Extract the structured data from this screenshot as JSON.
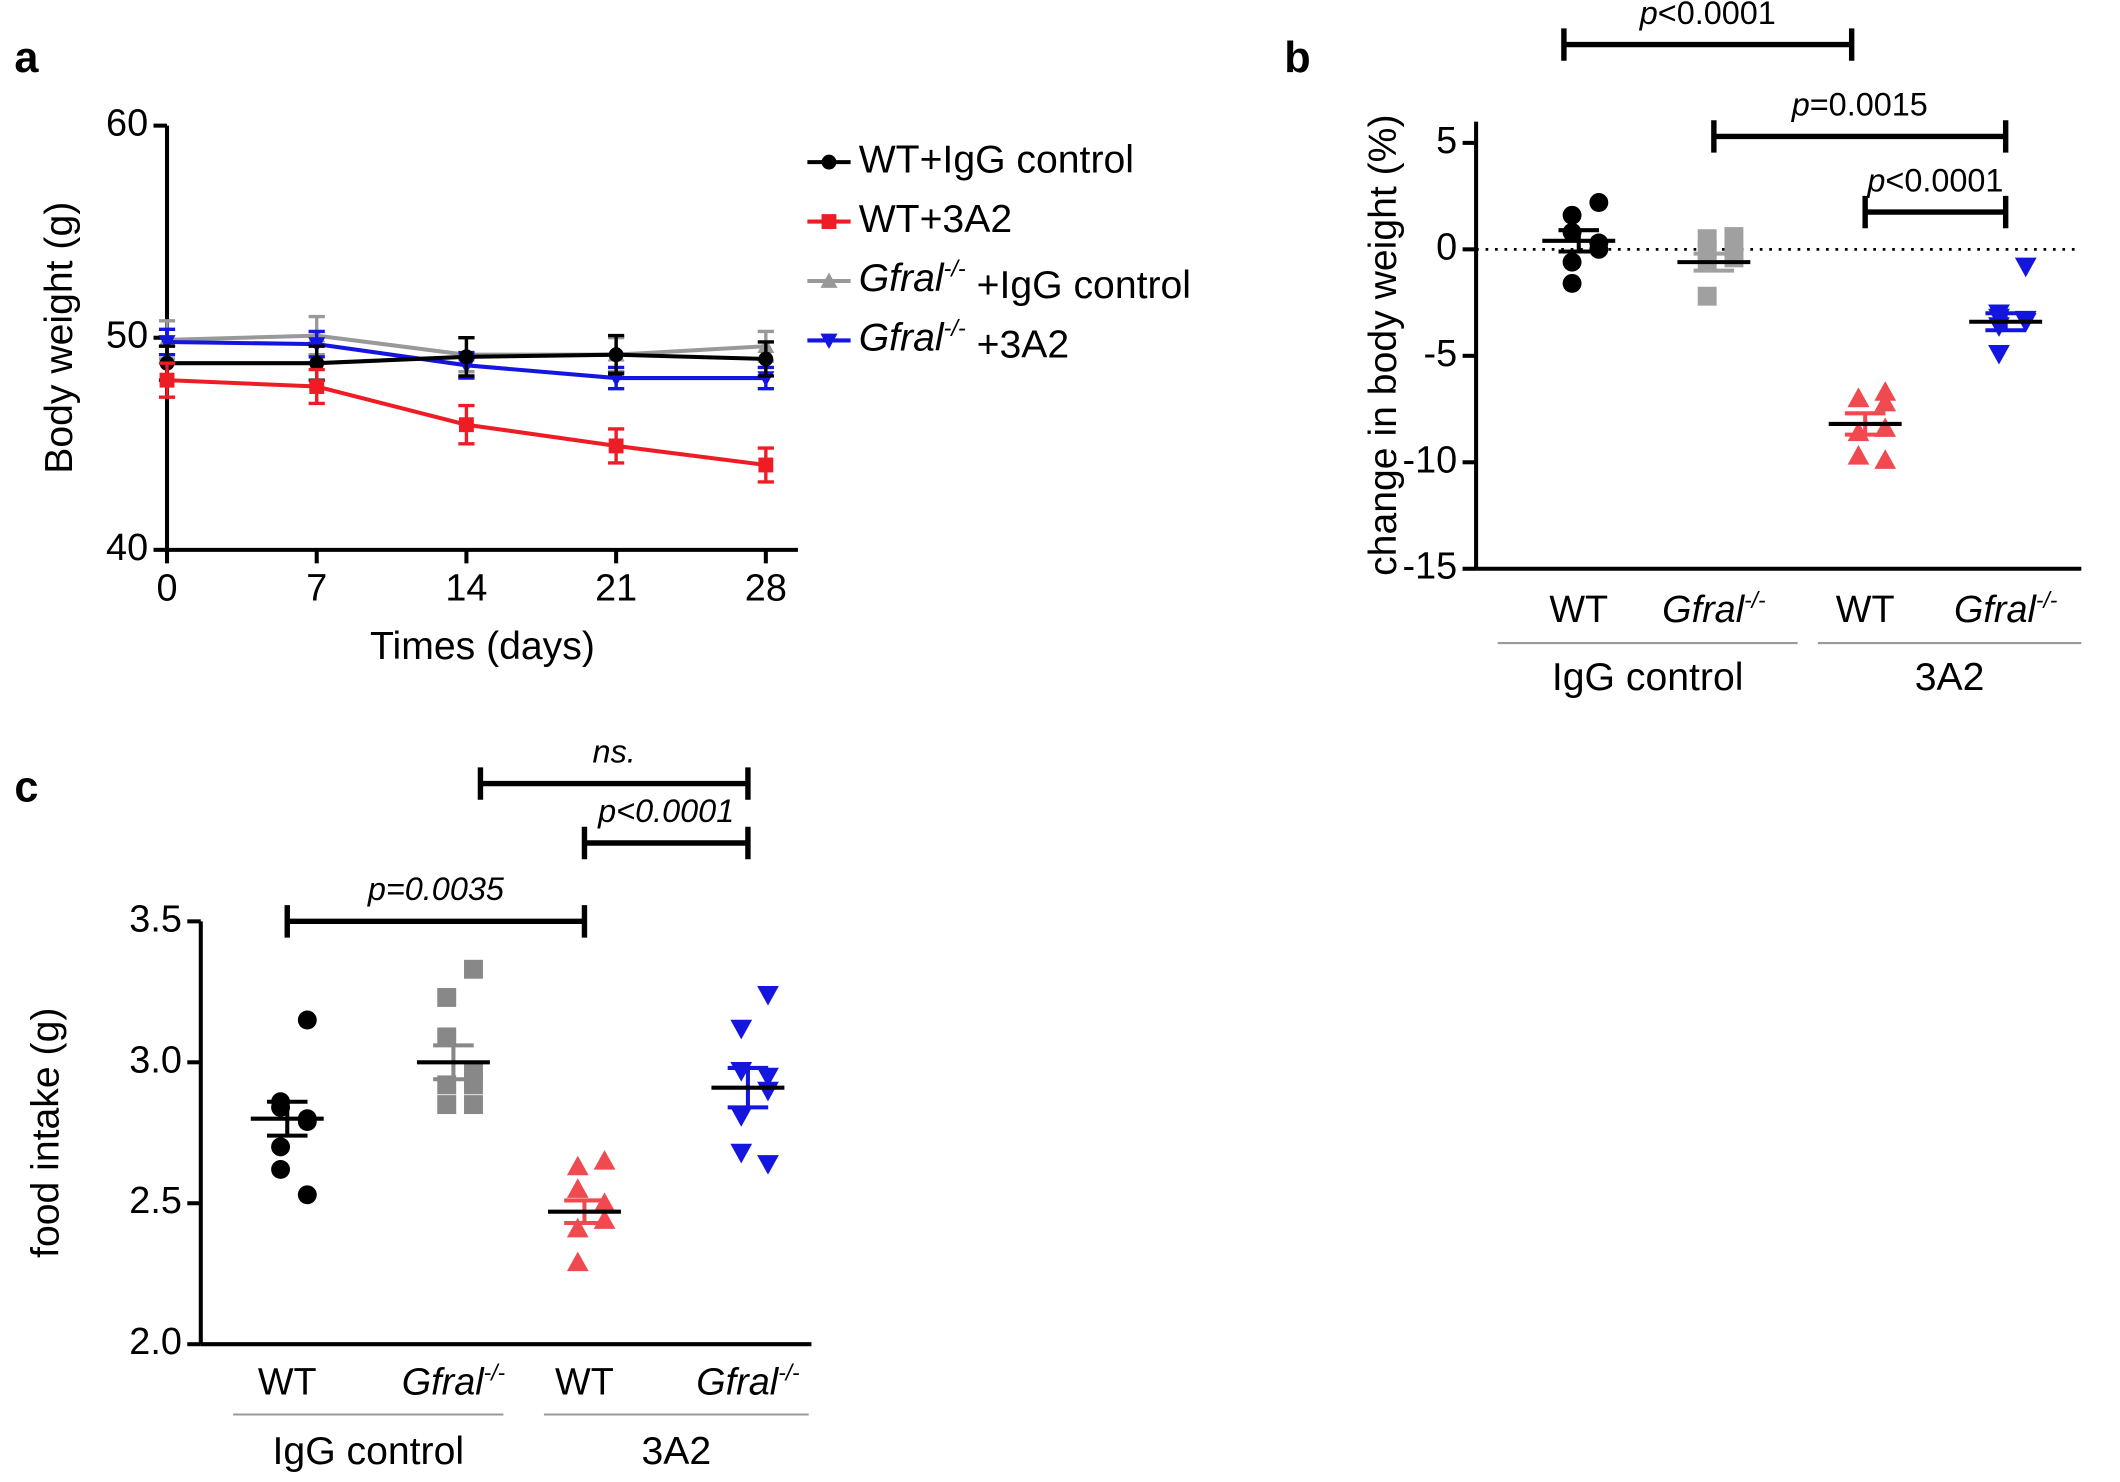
{
  "chart_data": [
    {
      "type": "line",
      "panel": "a",
      "xlabel": "Times (days)",
      "ylabel": "Body weight (g)",
      "x": [
        0,
        7,
        14,
        21,
        28
      ],
      "xlim": [
        0,
        29.5
      ],
      "xticks": [
        0,
        7,
        14,
        21,
        28
      ],
      "ylim": [
        40,
        60
      ],
      "yticks": [
        40,
        50,
        60
      ],
      "legend": "right",
      "series": [
        {
          "name": "WT+IgG control",
          "color": "#000000",
          "marker": "circle",
          "values": [
            48.8,
            48.8,
            49.1,
            49.2,
            49.0
          ],
          "errors": [
            0.8,
            0.8,
            0.9,
            0.9,
            0.8
          ]
        },
        {
          "name": "WT+3A2",
          "color": "#ee1c25",
          "marker": "square",
          "values": [
            48.0,
            47.7,
            45.9,
            44.9,
            44.0
          ],
          "errors": [
            0.8,
            0.8,
            0.9,
            0.8,
            0.8
          ]
        },
        {
          "name": "Gfral-/- +IgG control",
          "color": "#999999",
          "marker": "triangle",
          "values": [
            49.9,
            50.1,
            49.2,
            49.2,
            49.6
          ],
          "errors": [
            0.9,
            0.9,
            0.8,
            0.8,
            0.7
          ]
        },
        {
          "name": "Gfral-/- +3A2",
          "color": "#1515e0",
          "marker": "triangle-down",
          "values": [
            49.8,
            49.7,
            48.7,
            48.1,
            48.1
          ],
          "errors": [
            0.6,
            0.6,
            0.6,
            0.5,
            0.5
          ]
        }
      ]
    },
    {
      "type": "dot",
      "panel": "b",
      "ylabel": "change in body weight (%)",
      "categories": [
        "WT",
        "Gfral-/-",
        "WT",
        "Gfral-/-"
      ],
      "groups": [
        "IgG control",
        "3A2"
      ],
      "ylim": [
        -15,
        6
      ],
      "yticks": [
        -15,
        -10,
        -5,
        0,
        5
      ],
      "reference_line": 0,
      "colors": [
        "#000000",
        "#a0a0a0",
        "#f04a50",
        "#1515e0"
      ],
      "markers": [
        "circle",
        "square",
        "triangle",
        "triangle-down"
      ],
      "points": [
        [
          2.2,
          1.6,
          0.8,
          0.3,
          0,
          -0.6,
          -1.6
        ],
        [
          0.6,
          0.5,
          0,
          -0.2,
          -0.4,
          -0.6,
          -2.2
        ],
        [
          -6.7,
          -7.0,
          -7.0,
          -7.2,
          -8.4,
          -8.6,
          -9.7,
          -9.9
        ],
        [
          -0.8,
          -3.0,
          -3.2,
          -3.3,
          -3.4,
          -3.6,
          -4.9
        ]
      ],
      "means": [
        0.4,
        -0.6,
        -8.2,
        -3.4
      ],
      "sems": [
        0.5,
        0.4,
        0.5,
        0.4
      ],
      "annotations": [
        "p<0.0001",
        "p=0.0015",
        "p<0.0001"
      ]
    },
    {
      "type": "dot",
      "panel": "c",
      "ylabel": "food intake (g)",
      "categories": [
        "WT",
        "Gfral-/-",
        "WT",
        "Gfral-/-"
      ],
      "groups": [
        "IgG control",
        "3A2"
      ],
      "ylim": [
        2.0,
        3.5
      ],
      "yticks": [
        {
          "value": 2.0,
          "label": "2.0"
        },
        2.5,
        {
          "value": 3.0,
          "label": "3.0"
        },
        3.5
      ],
      "colors": [
        "#000000",
        "#888888",
        "#f04a50",
        "#1515e0"
      ],
      "markers": [
        "circle",
        "square",
        "triangle",
        "triangle-down"
      ],
      "points": [
        [
          3.15,
          2.86,
          2.84,
          2.8,
          2.79,
          2.7,
          2.62,
          2.53
        ],
        [
          3.33,
          3.23,
          3.09,
          2.97,
          2.92,
          2.92,
          2.85,
          2.85
        ],
        [
          2.65,
          2.63,
          2.55,
          2.5,
          2.44,
          2.41,
          2.29
        ],
        [
          3.24,
          3.12,
          2.97,
          2.95,
          2.9,
          2.81,
          2.68,
          2.64
        ]
      ],
      "means": [
        2.8,
        3.0,
        2.47,
        2.91
      ],
      "sems": [
        0.06,
        0.06,
        0.04,
        0.07
      ],
      "annotations": [
        "ns.",
        "p<0.0001",
        "p=0.0035"
      ]
    }
  ]
}
